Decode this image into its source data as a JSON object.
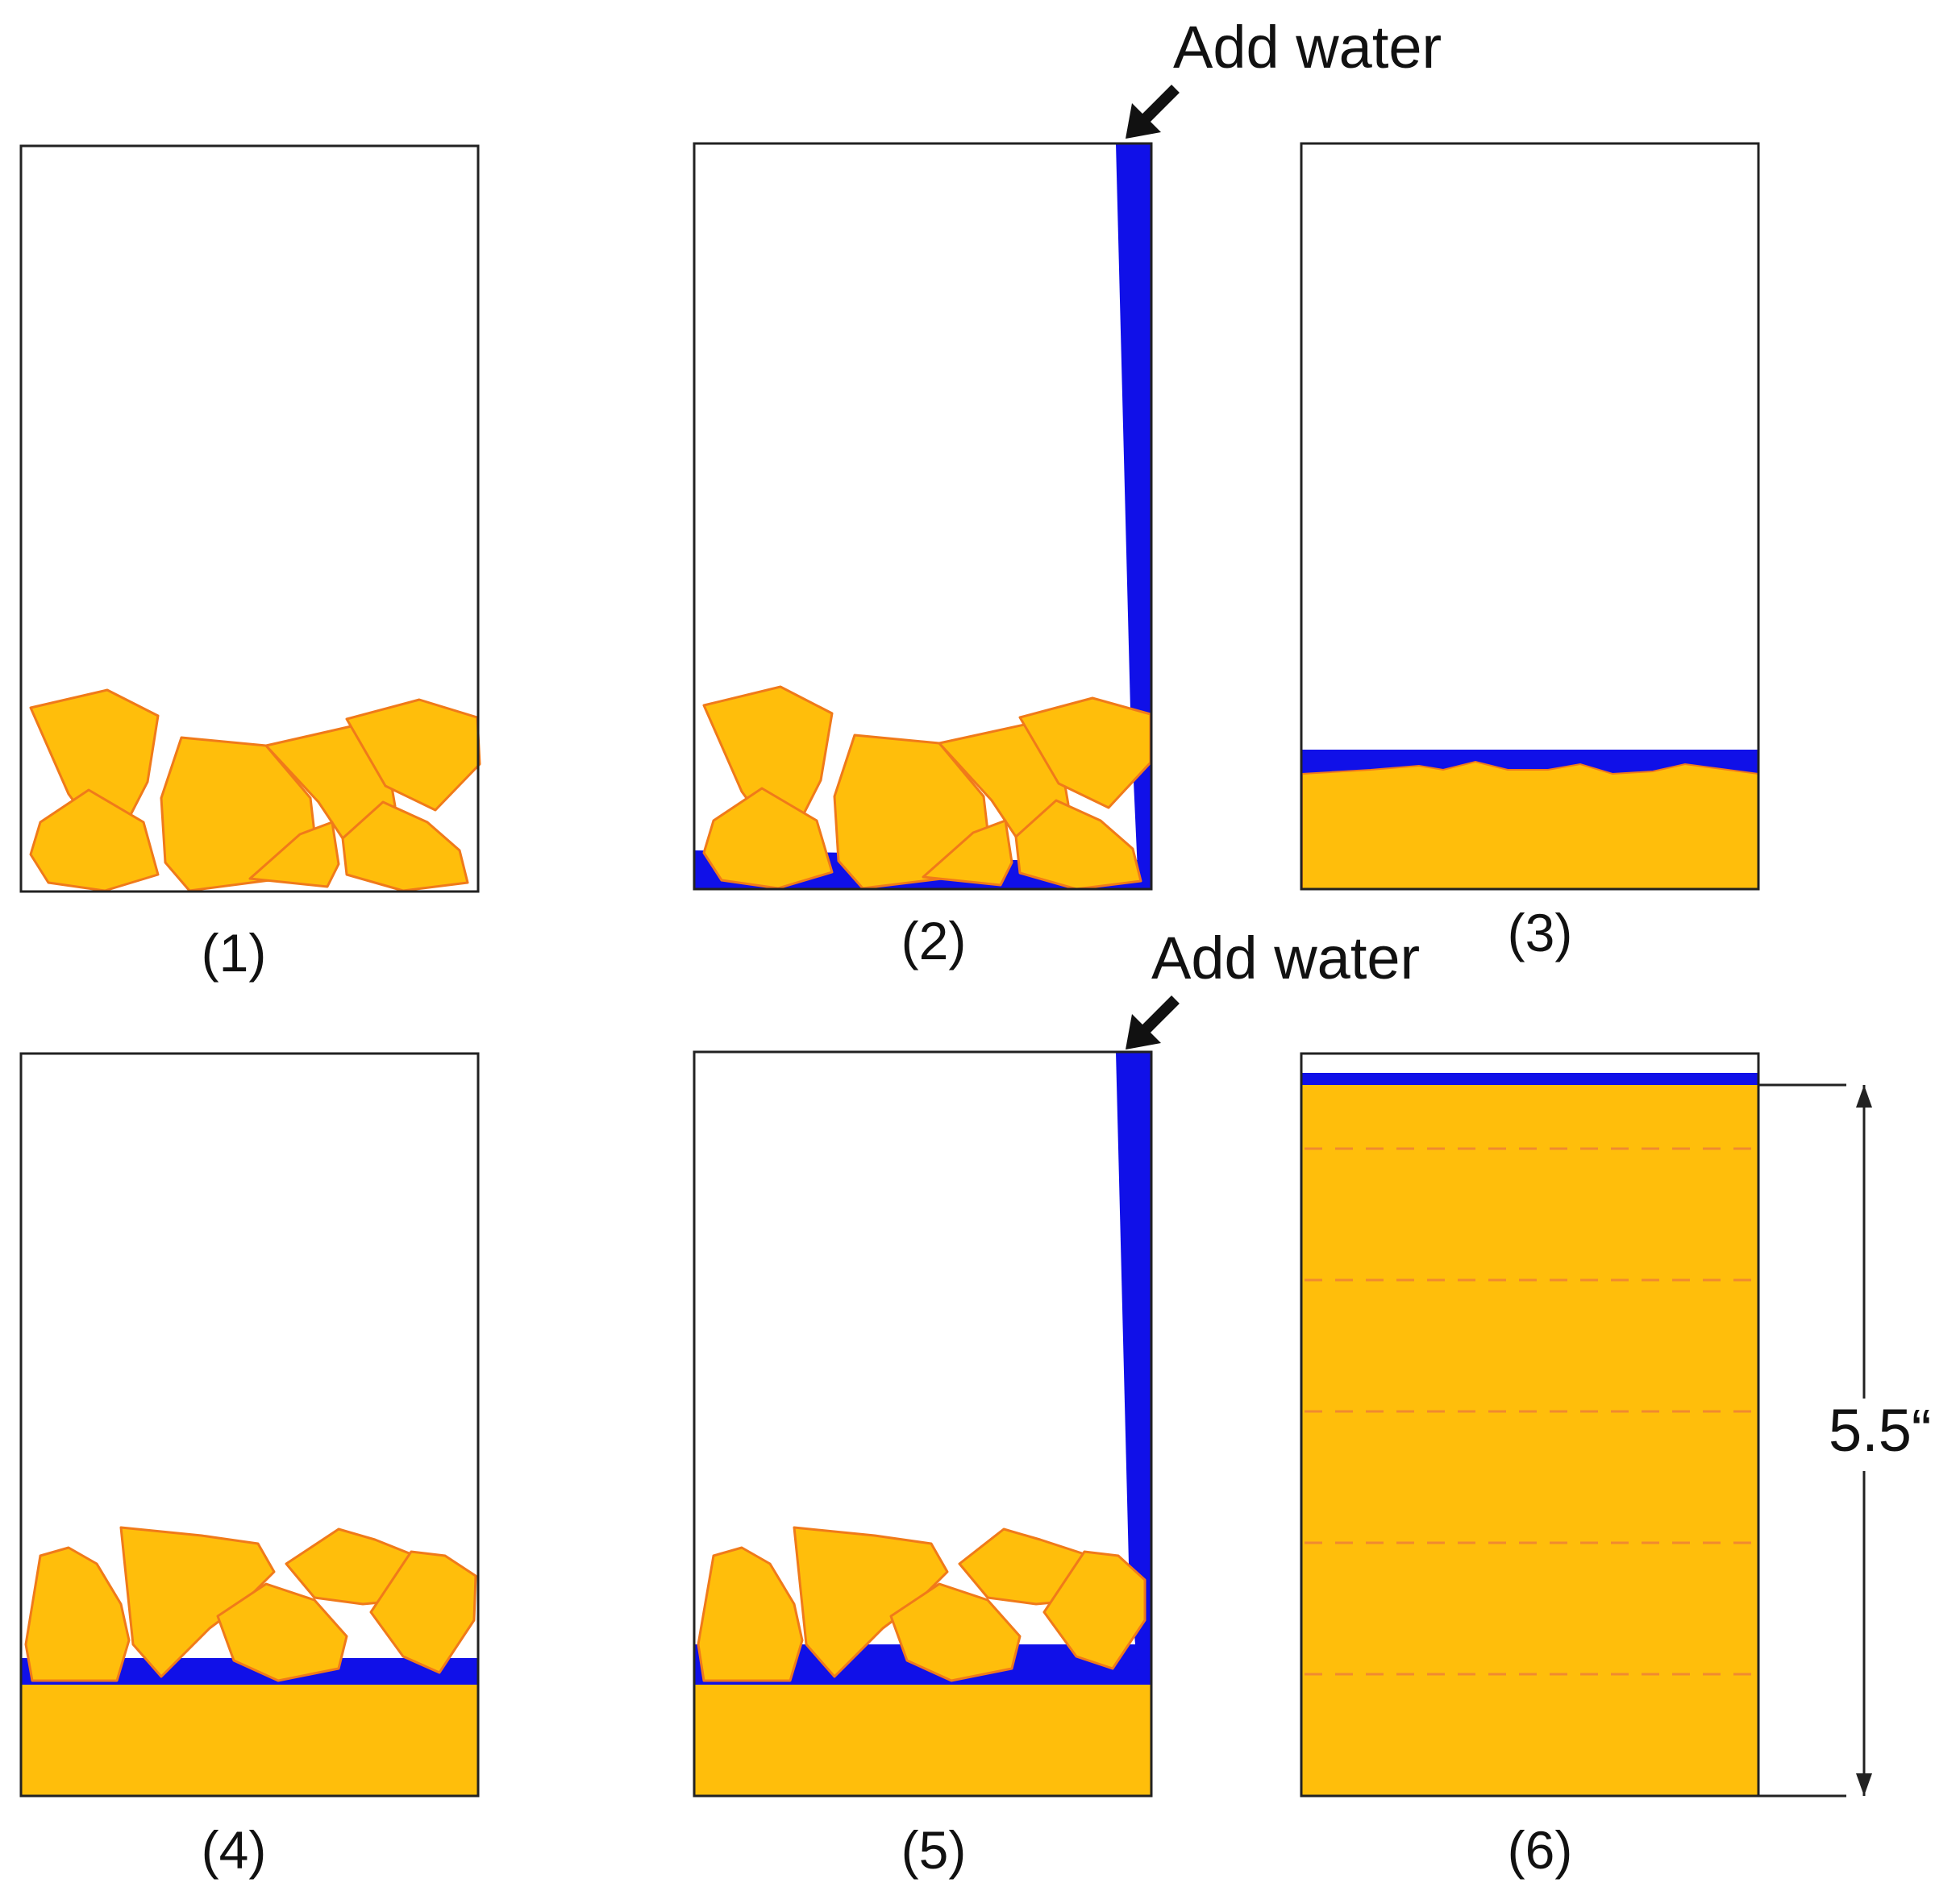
{
  "figure": {
    "colors": {
      "soil": "#FFBE0B",
      "soil_edge": "#F07A1A",
      "water": "#1010E8",
      "frame": "#222222",
      "text": "#111111"
    },
    "panels": [
      {
        "id": "1",
        "label": "(1)"
      },
      {
        "id": "2",
        "label": "(2)"
      },
      {
        "id": "3",
        "label": "(3)"
      },
      {
        "id": "4",
        "label": "(4)"
      },
      {
        "id": "5",
        "label": "(5)"
      },
      {
        "id": "6",
        "label": "(6)"
      }
    ],
    "annotations": {
      "add_water_top": "Add water",
      "add_water_bottom": "Add water",
      "height_dimension": "5.5“"
    },
    "icons": {
      "arrow": "arrow-down-left-icon"
    }
  }
}
